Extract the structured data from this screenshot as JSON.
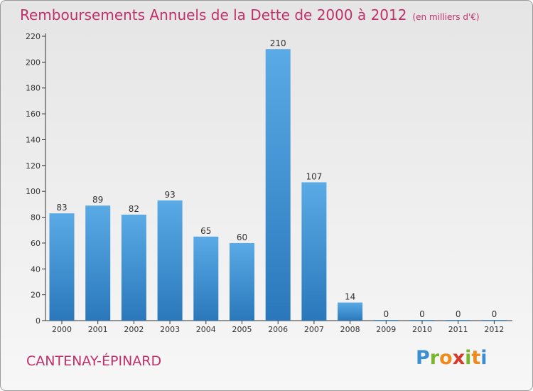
{
  "title": "Remboursements Annuels de la Dette de 2000 à 2012",
  "unit": "(en milliers d'€)",
  "commune": "CANTENAY-ÉPINARD",
  "logo": {
    "letters": [
      "P",
      "r",
      "o",
      "x",
      "i",
      "t",
      "i"
    ],
    "colors": [
      "#3b8fd1",
      "#78b62c",
      "#f08a1c",
      "#d9372c",
      "#78b62c",
      "#f08a1c",
      "#3b8fd1"
    ]
  },
  "colors": {
    "bar_light": "#5aaae6",
    "bar_dark": "#2a78bb",
    "title": "#c2306a",
    "axis": "#333333"
  },
  "chart_data": {
    "type": "bar",
    "categories": [
      "2000",
      "2001",
      "2002",
      "2003",
      "2004",
      "2005",
      "2006",
      "2007",
      "2008",
      "2009",
      "2010",
      "2011",
      "2012"
    ],
    "values": [
      83,
      89,
      82,
      93,
      65,
      60,
      210,
      107,
      14,
      0,
      0,
      0,
      0
    ],
    "ylim": [
      0,
      220
    ],
    "yticks": [
      0,
      20,
      40,
      60,
      80,
      100,
      120,
      140,
      160,
      180,
      200,
      220
    ],
    "grid": false
  }
}
